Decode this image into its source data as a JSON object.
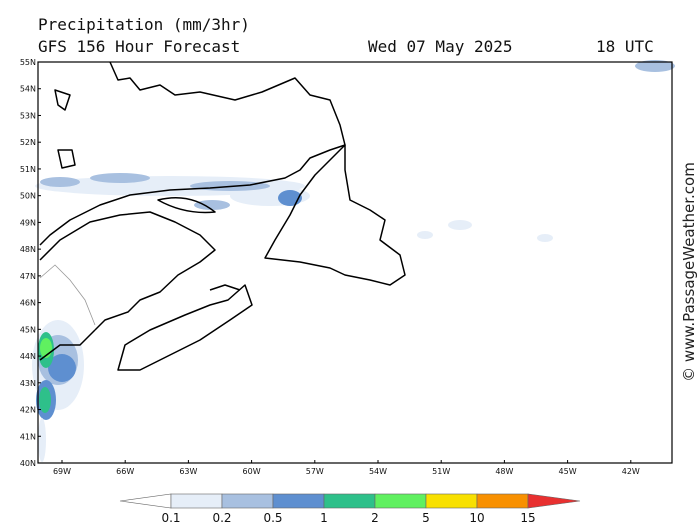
{
  "header": {
    "title": "Precipitation (mm/3hr)",
    "subtitle": "GFS 156 Hour Forecast",
    "date": "Wed 07 May 2025",
    "time": "18 UTC"
  },
  "map": {
    "lat_labels": [
      "55N",
      "54N",
      "53N",
      "52N",
      "51N",
      "50N",
      "49N",
      "48N",
      "47N",
      "46N",
      "45N",
      "44N",
      "43N",
      "42N",
      "41N",
      "40N"
    ],
    "lon_labels": [
      "69W",
      "66W",
      "63W",
      "60W",
      "57W",
      "54W",
      "51W",
      "48W",
      "45W",
      "42W"
    ]
  },
  "legend": {
    "labels": [
      "0.1",
      "0.2",
      "0.5",
      "1",
      "2",
      "5",
      "10",
      "15"
    ]
  },
  "watermark": "© www.PassageWeather.com"
}
